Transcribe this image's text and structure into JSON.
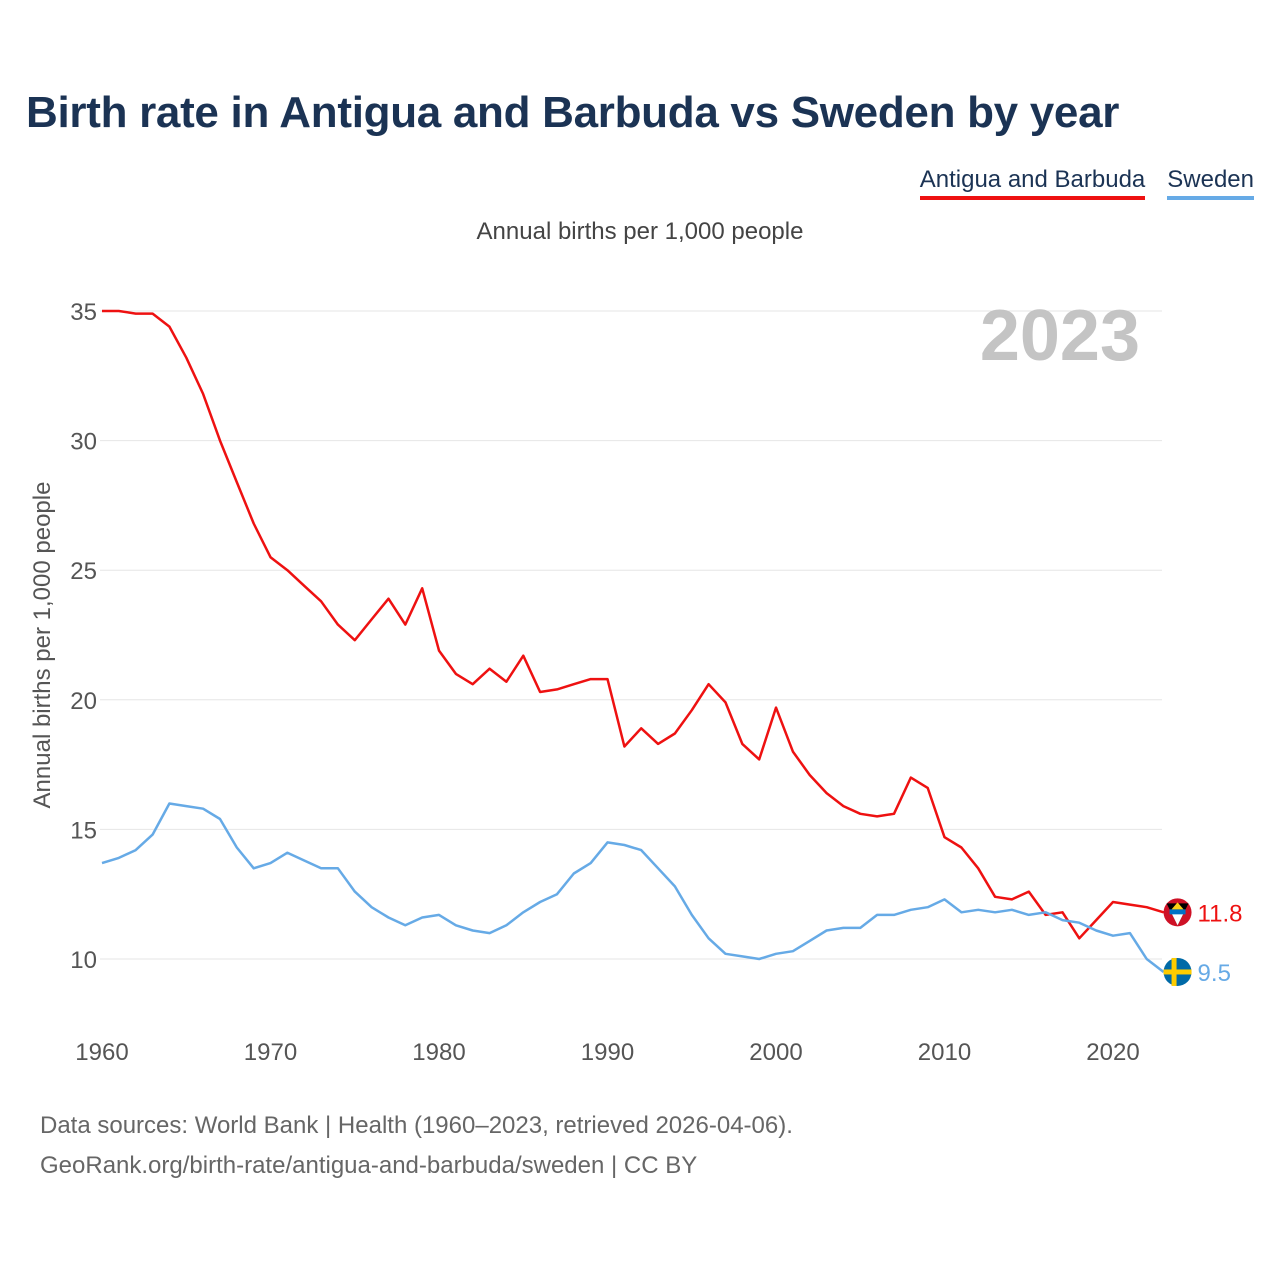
{
  "title": "Birth rate in Antigua and Barbuda vs Sweden by year",
  "subtitle": "Annual births per 1,000 people",
  "legend": [
    {
      "name": "Antigua and Barbuda",
      "color": "#ee1111"
    },
    {
      "name": "Sweden",
      "color": "#66aae6"
    }
  ],
  "year_watermark": "2023",
  "footer": {
    "line1": "Data sources: World Bank | Health (1960–2023, retrieved 2026-04-06).",
    "line2": "GeoRank.org/birth-rate/antigua-and-barbuda/sweden | CC BY"
  },
  "chart_data": {
    "type": "line",
    "title": "Birth rate in Antigua and Barbuda vs Sweden by year",
    "xlabel": "",
    "ylabel": "Annual births per 1,000 people",
    "xlim": [
      1960,
      2024
    ],
    "ylim": [
      8,
      36
    ],
    "yticks": [
      10,
      15,
      20,
      25,
      30,
      35
    ],
    "xticks": [
      1960,
      1970,
      1980,
      1990,
      2000,
      2010,
      2020
    ],
    "x": [
      1960,
      1961,
      1962,
      1963,
      1964,
      1965,
      1966,
      1967,
      1968,
      1969,
      1970,
      1971,
      1972,
      1973,
      1974,
      1975,
      1976,
      1977,
      1978,
      1979,
      1980,
      1981,
      1982,
      1983,
      1984,
      1985,
      1986,
      1987,
      1988,
      1989,
      1990,
      1991,
      1992,
      1993,
      1994,
      1995,
      1996,
      1997,
      1998,
      1999,
      2000,
      2001,
      2002,
      2003,
      2004,
      2005,
      2006,
      2007,
      2008,
      2009,
      2010,
      2011,
      2012,
      2013,
      2014,
      2015,
      2016,
      2017,
      2018,
      2019,
      2020,
      2021,
      2022,
      2023
    ],
    "series": [
      {
        "name": "Antigua and Barbuda",
        "color": "#ee1111",
        "end_label": "11.8",
        "values": [
          35.0,
          35.0,
          34.9,
          34.9,
          34.4,
          33.2,
          31.8,
          30.0,
          28.4,
          26.8,
          25.5,
          25.0,
          24.4,
          23.8,
          22.9,
          22.3,
          23.1,
          23.9,
          22.9,
          24.3,
          21.9,
          21.0,
          20.6,
          21.2,
          20.7,
          21.7,
          20.3,
          20.4,
          20.6,
          20.8,
          20.8,
          18.2,
          18.9,
          18.3,
          18.7,
          19.6,
          20.6,
          19.9,
          18.3,
          17.7,
          19.7,
          18.0,
          17.1,
          16.4,
          15.9,
          15.6,
          15.5,
          15.6,
          17.0,
          16.6,
          14.7,
          14.3,
          13.5,
          12.4,
          12.3,
          12.6,
          11.7,
          11.8,
          10.8,
          11.5,
          12.2,
          12.1,
          12.0,
          11.8
        ]
      },
      {
        "name": "Sweden",
        "color": "#66aae6",
        "end_label": "9.5",
        "values": [
          13.7,
          13.9,
          14.2,
          14.8,
          16.0,
          15.9,
          15.8,
          15.4,
          14.3,
          13.5,
          13.7,
          14.1,
          13.8,
          13.5,
          13.5,
          12.6,
          12.0,
          11.6,
          11.3,
          11.6,
          11.7,
          11.3,
          11.1,
          11.0,
          11.3,
          11.8,
          12.2,
          12.5,
          13.3,
          13.7,
          14.5,
          14.4,
          14.2,
          13.5,
          12.8,
          11.7,
          10.8,
          10.2,
          10.1,
          10.0,
          10.2,
          10.3,
          10.7,
          11.1,
          11.2,
          11.2,
          11.7,
          11.7,
          11.9,
          12.0,
          12.3,
          11.8,
          11.9,
          11.8,
          11.9,
          11.7,
          11.8,
          11.5,
          11.4,
          11.1,
          10.9,
          11.0,
          10.0,
          9.5
        ]
      }
    ]
  }
}
